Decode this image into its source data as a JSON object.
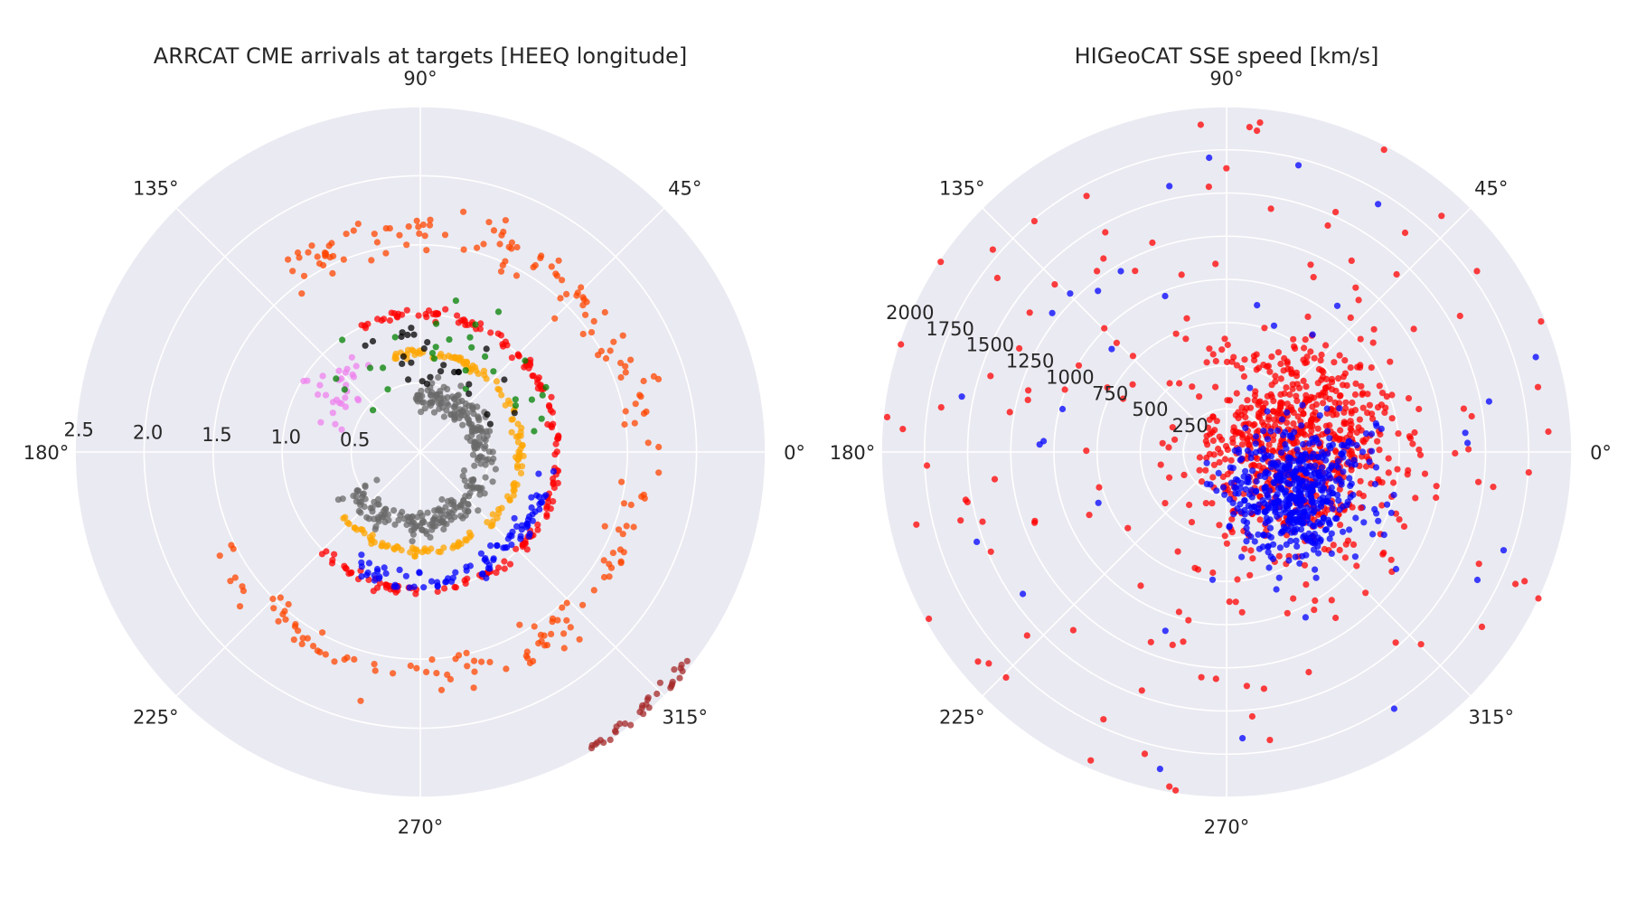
{
  "colors": {
    "background": "#eaeaf2",
    "grid": "#ffffff",
    "text": "#262626"
  },
  "chart_data": [
    {
      "type": "scatter",
      "projection": "polar",
      "title": "ARRCAT CME arrivals at targets [HEEQ longitude]",
      "angle_ticks": [
        "0°",
        "45°",
        "90°",
        "135°",
        "180°",
        "225°",
        "270°",
        "315°"
      ],
      "radial_ticks": [
        0.5,
        1.0,
        1.5,
        2.0,
        2.5
      ],
      "radial_tick_labels": [
        "0.5",
        "1.0",
        "1.5",
        "2.0",
        "2.5"
      ],
      "rlim": [
        0,
        2.5
      ],
      "grid": true,
      "series": [
        {
          "color": "#696969",
          "kind": "spiral",
          "from_deg": 210,
          "to_deg": 95,
          "r_start": 0.55,
          "r_end": 0.4,
          "count": 300,
          "jitter": 0.05
        },
        {
          "color": "#ffa500",
          "kind": "arc",
          "from_deg": 220,
          "to_deg": 112,
          "r": 0.72,
          "count": 150,
          "jitter": 0.015
        },
        {
          "color": "#ff0000",
          "kind": "arc",
          "from_deg": 225,
          "to_deg": 115,
          "r": 1.0,
          "count": 170,
          "jitter": 0.02
        },
        {
          "color": "#0000ff",
          "kind": "arc",
          "from_deg": 240,
          "to_deg": 352,
          "r": 0.93,
          "count": 90,
          "jitter": 0.04
        },
        {
          "color": "#ff4500",
          "kind": "arc",
          "from_deg": 205,
          "to_deg": 128,
          "r": 1.6,
          "count": 210,
          "jitter": 0.08
        },
        {
          "color": "#ee82ee",
          "kind": "arc",
          "from_deg": 120,
          "to_deg": 165,
          "r": 0.75,
          "count": 30,
          "jitter": 0.1
        },
        {
          "color": "#008000",
          "kind": "scatter",
          "from_deg": 0,
          "to_deg": 160,
          "r": 0.85,
          "count": 30,
          "jitter": 0.15
        },
        {
          "color": "#000000",
          "kind": "scatter",
          "from_deg": 20,
          "to_deg": 120,
          "r": 0.7,
          "count": 28,
          "jitter": 0.15
        },
        {
          "color": "#a52a2a",
          "kind": "arc",
          "from_deg": 300,
          "to_deg": 322,
          "r": 2.45,
          "count": 35,
          "jitter": 0.03
        }
      ]
    },
    {
      "type": "scatter",
      "projection": "polar",
      "title": "HIGeoCAT SSE speed [km/s]",
      "angle_ticks": [
        "0°",
        "45°",
        "90°",
        "135°",
        "180°",
        "225°",
        "270°",
        "315°"
      ],
      "radial_ticks": [
        250,
        500,
        750,
        1000,
        1250,
        1500,
        1750,
        2000
      ],
      "radial_tick_labels": [
        "250",
        "500",
        "750",
        "1000",
        "1250",
        "1500",
        "1750",
        "2000"
      ],
      "rlim": [
        0,
        2000
      ],
      "grid": true,
      "series": [
        {
          "color": "#ff0000",
          "kind": "cloud",
          "center_deg": 5,
          "center_r": 400,
          "count": 700,
          "spread": 600
        },
        {
          "color": "#0000ff",
          "kind": "cloud",
          "center_deg": 330,
          "center_r": 450,
          "count": 520,
          "spread": 380
        },
        {
          "color": "#ff0000",
          "kind": "sparse",
          "count": 130,
          "r_min": 700,
          "r_max": 2000
        },
        {
          "color": "#0000ff",
          "kind": "sparse",
          "count": 40,
          "r_min": 700,
          "r_max": 1900
        }
      ]
    }
  ]
}
